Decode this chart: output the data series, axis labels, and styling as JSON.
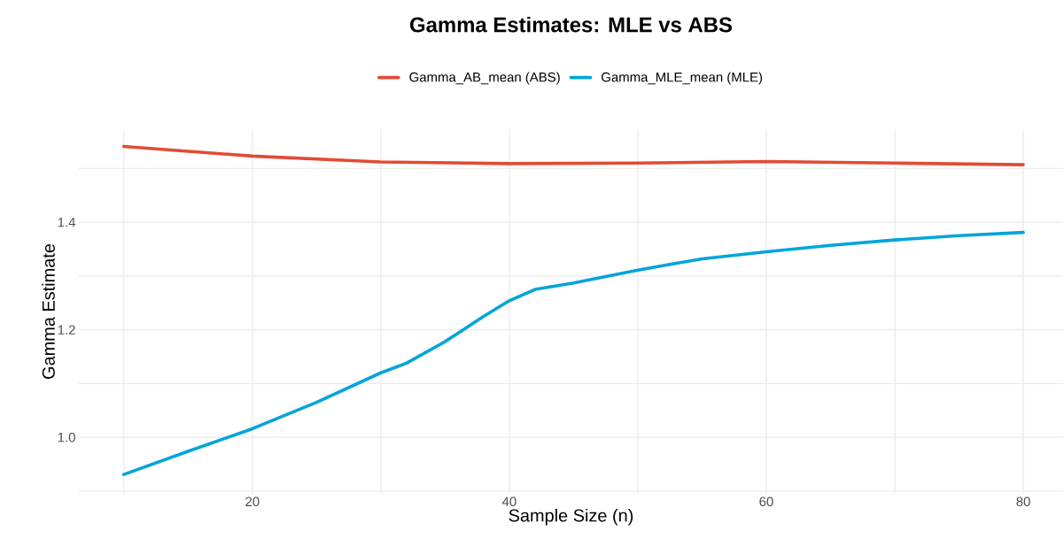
{
  "chart_data": {
    "type": "line",
    "title": "Gamma Estimates: MLE vs ABS",
    "xlabel": "Sample Size (n)",
    "ylabel": "Gamma Estimate",
    "x": [
      10,
      15,
      20,
      25,
      30,
      32,
      35,
      38,
      40,
      42,
      45,
      50,
      55,
      60,
      65,
      70,
      75,
      80
    ],
    "series": [
      {
        "name": "Gamma_AB_mean (ABS)",
        "color": "#e34a33",
        "x": [
          10,
          20,
          30,
          40,
          50,
          60,
          70,
          80
        ],
        "values": [
          1.541,
          1.523,
          1.512,
          1.509,
          1.51,
          1.513,
          1.51,
          1.507
        ]
      },
      {
        "name": "Gamma_MLE_mean (MLE)",
        "color": "#00a5d9",
        "values": [
          0.931,
          0.974,
          1.016,
          1.065,
          1.12,
          1.138,
          1.178,
          1.225,
          1.254,
          1.275,
          1.287,
          1.311,
          1.332,
          1.345,
          1.357,
          1.367,
          1.375,
          1.381
        ]
      }
    ],
    "xlim": [
      6.5,
      83.1
    ],
    "ylim": [
      0.895,
      1.573
    ],
    "xticks": [
      {
        "value": 10,
        "label": null
      },
      20,
      {
        "value": 30,
        "label": null
      },
      40,
      {
        "value": 50,
        "label": null
      },
      60,
      {
        "value": 70,
        "label": null
      },
      80
    ],
    "yticks": [
      {
        "value": 0.9,
        "label": null
      },
      {
        "value": 1.0,
        "label": "1.0"
      },
      {
        "value": 1.1,
        "label": null
      },
      1.2,
      {
        "value": 1.3,
        "label": null
      },
      1.4,
      {
        "value": 1.5,
        "label": null
      }
    ],
    "grid": true,
    "legend": "top"
  }
}
